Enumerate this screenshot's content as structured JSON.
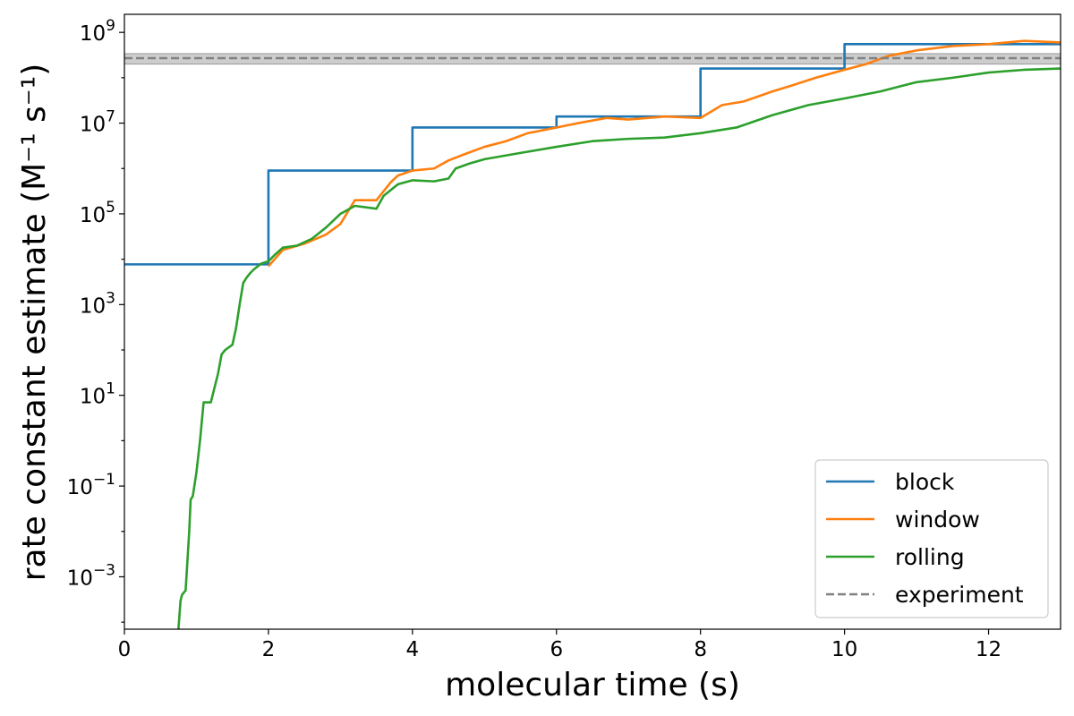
{
  "chart_data": {
    "type": "line",
    "title": "",
    "xlabel": "molecular time (s)",
    "ylabel": "rate constant estimate (M⁻¹ s⁻¹)",
    "xlim": [
      0,
      13
    ],
    "ylim": [
      7e-05,
      2500000000
    ],
    "yscale": "log",
    "grid": false,
    "legend_position": "lower-right",
    "x_ticks": [
      0,
      2,
      4,
      6,
      8,
      10,
      12
    ],
    "x_tick_labels": [
      "0",
      "2",
      "4",
      "6",
      "8",
      "10",
      "12"
    ],
    "y_ticks": [
      {
        "base": "10",
        "exp": "9",
        "value": 1000000000
      },
      {
        "base": "10",
        "exp": "7",
        "value": 10000000
      },
      {
        "base": "10",
        "exp": "5",
        "value": 100000
      },
      {
        "base": "10",
        "exp": "3",
        "value": 1000
      },
      {
        "base": "10",
        "exp": "1",
        "value": 10
      },
      {
        "base": "10",
        "exp": "−1",
        "value": 0.1
      },
      {
        "base": "10",
        "exp": "−3",
        "value": 0.001
      }
    ],
    "experiment": {
      "name": "experiment",
      "value": 270000000,
      "band": [
        200000000,
        340000000
      ],
      "color": "#808080"
    },
    "series": [
      {
        "name": "block",
        "color": "#1f77b4",
        "step": true,
        "x": [
          0,
          2,
          4,
          6,
          8,
          10,
          13
        ],
        "y": [
          7700,
          900000,
          8000000,
          14000000,
          160000000,
          550000000,
          550000000
        ]
      },
      {
        "name": "window",
        "color": "#ff7f0e",
        "step": false,
        "x": [
          2.0,
          2.2,
          2.5,
          2.8,
          3.0,
          3.2,
          3.5,
          3.7,
          3.8,
          4.0,
          4.3,
          4.5,
          4.7,
          5.0,
          5.3,
          5.6,
          6.0,
          6.3,
          6.7,
          7.0,
          7.5,
          8.0,
          8.3,
          8.6,
          9.0,
          9.3,
          9.6,
          10.0,
          10.3,
          10.6,
          11.0,
          11.5,
          12.0,
          12.5,
          13.0
        ],
        "y": [
          7000,
          16000,
          22000,
          35000,
          60000,
          200000,
          200000,
          500000,
          700000,
          900000,
          1000000,
          1500000,
          2000000,
          3000000,
          4000000,
          6000000,
          8000000,
          10000000,
          13000000,
          12000000,
          14000000,
          13000000,
          25000000,
          30000000,
          50000000,
          70000000,
          100000000,
          150000000,
          200000000,
          300000000,
          400000000,
          500000000,
          550000000,
          650000000,
          600000000
        ]
      },
      {
        "name": "rolling",
        "color": "#2ca02c",
        "step": false,
        "x": [
          0.75,
          0.78,
          0.8,
          0.85,
          0.88,
          0.9,
          0.92,
          0.95,
          1.0,
          1.05,
          1.1,
          1.2,
          1.3,
          1.35,
          1.4,
          1.5,
          1.55,
          1.6,
          1.65,
          1.7,
          1.75,
          1.8,
          1.9,
          2.0,
          2.1,
          2.2,
          2.4,
          2.6,
          2.8,
          3.0,
          3.2,
          3.5,
          3.6,
          3.8,
          4.0,
          4.3,
          4.5,
          4.6,
          4.8,
          5.0,
          5.5,
          6.0,
          6.5,
          7.0,
          7.5,
          8.0,
          8.5,
          9.0,
          9.5,
          10.0,
          10.5,
          11.0,
          11.5,
          12.0,
          12.5,
          13.0
        ],
        "y": [
          7e-05,
          0.0003,
          0.0004,
          0.0005,
          0.003,
          0.01,
          0.05,
          0.06,
          0.2,
          1,
          7,
          7,
          30,
          80,
          100,
          130,
          300,
          1000,
          3000,
          4000,
          5000,
          6000,
          8000,
          9000,
          13000,
          18000,
          20000,
          28000,
          50000,
          100000,
          150000,
          130000,
          250000,
          450000,
          550000,
          520000,
          600000,
          1000000,
          1300000,
          1600000,
          2200000,
          3000000,
          4000000,
          4500000,
          4800000,
          6000000,
          8000000,
          15000000,
          25000000,
          35000000,
          50000000,
          80000000,
          100000000,
          130000000,
          150000000,
          160000000
        ]
      }
    ]
  }
}
